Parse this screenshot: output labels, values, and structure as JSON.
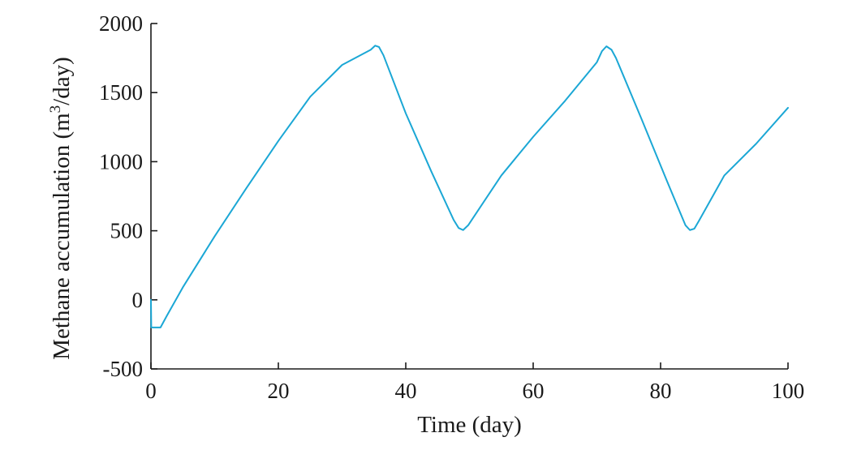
{
  "chart_data": {
    "type": "line",
    "title": "",
    "xlabel": "Time (day)",
    "ylabel": {
      "prefix": "Methane accumulation (m",
      "superscript": "3",
      "suffix": "/day)"
    },
    "xlim": [
      0,
      100
    ],
    "ylim": [
      -500,
      2000
    ],
    "x_ticks": [
      0,
      20,
      40,
      60,
      80,
      100
    ],
    "y_ticks": [
      -500,
      0,
      500,
      1000,
      1500,
      2000
    ],
    "x_tick_labels": [
      "0",
      "20",
      "40",
      "60",
      "80",
      "100"
    ],
    "y_tick_labels": [
      "-500",
      "0",
      "500",
      "1000",
      "1500",
      "2000"
    ],
    "grid": false,
    "colors": {
      "series": "#1ba7d5",
      "axis": "#1a1a1a"
    },
    "series": [
      {
        "x": [
          0.0,
          0.05,
          0.1,
          1.5,
          2.5,
          5,
          10,
          15,
          20,
          25,
          30,
          34.5,
          35.2,
          35.8,
          36.5,
          40,
          44,
          47.5,
          48.3,
          49,
          49.8,
          55,
          60,
          65,
          70,
          70.8,
          71.5,
          72.3,
          73,
          77,
          81,
          83.9,
          84.6,
          85.3,
          86,
          90,
          95,
          100
        ],
        "y": [
          0,
          -200,
          -200,
          -200,
          -115,
          90,
          460,
          810,
          1150,
          1470,
          1700,
          1810,
          1840,
          1830,
          1770,
          1350,
          930,
          580,
          520,
          505,
          540,
          900,
          1180,
          1440,
          1720,
          1800,
          1835,
          1810,
          1750,
          1310,
          860,
          540,
          505,
          515,
          570,
          900,
          1130,
          1390
        ]
      }
    ]
  }
}
